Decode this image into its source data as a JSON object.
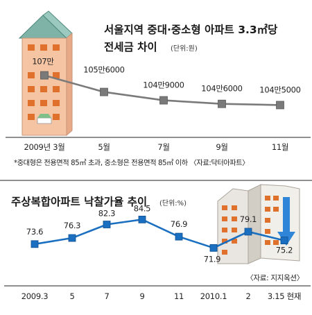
{
  "colors": {
    "chart1_line": "#7a7a7a",
    "chart2_line": "#1a6fc0",
    "building_wall": "#f5c4a3",
    "building_roof": "#7fb3a8",
    "building_window": "#e0712c",
    "arrow": "#2f86d8"
  },
  "chart_data": [
    {
      "type": "line",
      "title": "서울지역 중대·중소형 아파트 3.3㎡당",
      "title_line2": "전세금 차이",
      "unit": "(단위:원)",
      "xlabel": "",
      "ylabel": "",
      "categories": [
        "2009년 3월",
        "5월",
        "7월",
        "9월",
        "11월"
      ],
      "values": [
        1070000,
        1056000,
        1049000,
        1046000,
        1045000
      ],
      "value_labels": [
        "107만",
        "105만6000",
        "104만9000",
        "104만6000",
        "104만5000"
      ],
      "ylim": [
        1040000,
        1075000
      ],
      "grid": false,
      "legend": "none",
      "footnote": "*중대형은 전용면적 85㎡ 초과, 중소형은 전용면적 85㎡ 이하 〈자료:닥터아파트〉"
    },
    {
      "type": "line",
      "title": "주상복합아파트 낙찰가율 추이",
      "unit": "(단위:%)",
      "xlabel": "",
      "ylabel": "",
      "categories": [
        "2009.3",
        "5",
        "7",
        "9",
        "11",
        "2010.1",
        "2",
        "3.15 현재"
      ],
      "values": [
        73.6,
        76.3,
        82.3,
        84.5,
        76.9,
        71.9,
        79.1,
        75.2
      ],
      "value_labels": [
        "73.6",
        "76.3",
        "82.3",
        "84.5",
        "76.9",
        "71.9",
        "79.1",
        "75.2"
      ],
      "ylim": [
        68,
        88
      ],
      "grid": false,
      "legend": "none",
      "source": "〈자료: 지지옥션〉"
    }
  ]
}
